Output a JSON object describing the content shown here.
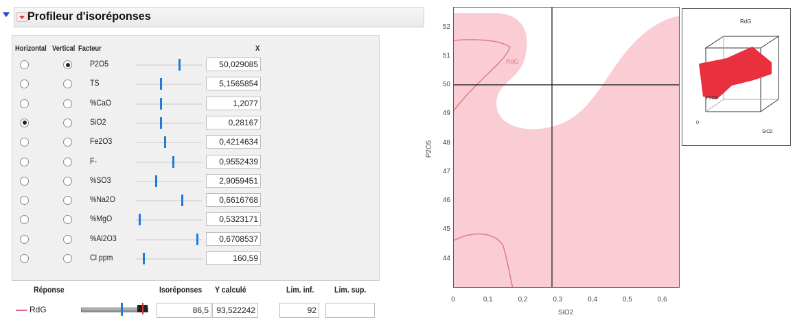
{
  "profiler": {
    "title": "Profileur d'isoréponses",
    "columns": {
      "horizontal": "Horizontal",
      "vertical": "Vertical",
      "factor": "Facteur",
      "x": "X"
    },
    "factors": [
      {
        "name": "P2O5",
        "value": "50,029085",
        "horizontal": false,
        "vertical": true,
        "slider_frac": 0.66
      },
      {
        "name": "TS",
        "value": "5,1565854",
        "horizontal": false,
        "vertical": false,
        "slider_frac": 0.38
      },
      {
        "name": "%CaO",
        "value": "1,2077",
        "horizontal": false,
        "vertical": false,
        "slider_frac": 0.38
      },
      {
        "name": "SiO2",
        "value": "0,28167",
        "horizontal": true,
        "vertical": false,
        "slider_frac": 0.38
      },
      {
        "name": "Fe2O3",
        "value": "0,4214634",
        "horizontal": false,
        "vertical": false,
        "slider_frac": 0.44
      },
      {
        "name": "F-",
        "value": "0,9552439",
        "horizontal": false,
        "vertical": false,
        "slider_frac": 0.57
      },
      {
        "name": "%SO3",
        "value": "2,9059451",
        "horizontal": false,
        "vertical": false,
        "slider_frac": 0.31
      },
      {
        "name": "%Na2O",
        "value": "0,6616768",
        "horizontal": false,
        "vertical": false,
        "slider_frac": 0.7
      },
      {
        "name": "%MgO",
        "value": "0,5323171",
        "horizontal": false,
        "vertical": false,
        "slider_frac": 0.06
      },
      {
        "name": "%Al2O3",
        "value": "0,6708537",
        "horizontal": false,
        "vertical": false,
        "slider_frac": 0.93
      },
      {
        "name": "Cl ppm",
        "value": "160,59",
        "horizontal": false,
        "vertical": false,
        "slider_frac": 0.12
      }
    ],
    "response_headers": {
      "response": "Réponse",
      "isoresponse": "Isoréponses",
      "y_calc": "Y calculé",
      "lim_inf": "Lim. inf.",
      "lim_sup": "Lim. sup."
    },
    "response": {
      "name": "RdG",
      "isoresponse": "86,5",
      "y_calc": "93,522242",
      "lim_inf": "92",
      "lim_sup": ""
    }
  },
  "contour_plot": {
    "xlabel": "SiO2",
    "ylabel": "P2O5",
    "xticks": [
      "0",
      "0,1",
      "0,2",
      "0,3",
      "0,4",
      "0,5",
      "0,6"
    ],
    "yticks": [
      "44",
      "45",
      "46",
      "47",
      "48",
      "49",
      "50",
      "51",
      "52"
    ],
    "xlim": [
      0,
      0.65
    ],
    "ylim": [
      43,
      52.7
    ],
    "crosshair": {
      "x": 0.28167,
      "y": 50.029085
    },
    "contour_label": "RdG",
    "shade_color": "#f9cdd3",
    "contour_color": "#e07a8a"
  },
  "surface_inset": {
    "title": "RdG",
    "x_axis": "SiO2",
    "y_axis": "P2O5",
    "origin_label": "0",
    "surface_color": "#e8303f"
  }
}
